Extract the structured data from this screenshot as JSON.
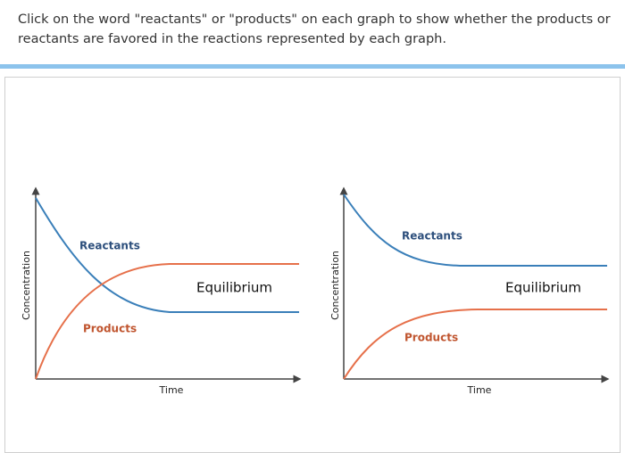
{
  "instruction": "Click on the word \"reactants\" or \"products\" on each graph to show whether the products or reactants are favored in the reactions represented by each graph.",
  "graphs": [
    {
      "reactants_label": "Reactants",
      "products_label": "Products",
      "state_label": "Equilibrium",
      "y_axis_label": "Concentration",
      "x_axis_label": "Time"
    },
    {
      "reactants_label": "Reactants",
      "products_label": "Products",
      "state_label": "Equilibrium",
      "y_axis_label": "Concentration",
      "x_axis_label": "Time"
    }
  ]
}
